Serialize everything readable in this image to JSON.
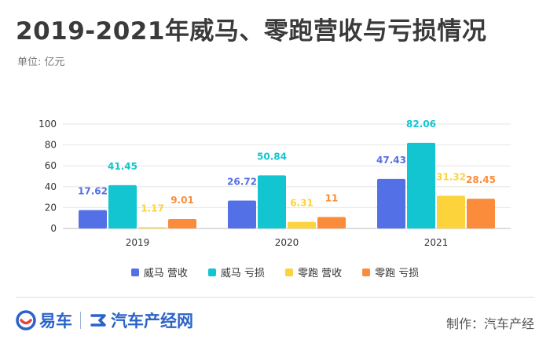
{
  "header": {
    "title": "2019-2021年威马、零跑营收与亏损情况",
    "unit": "单位: 亿元"
  },
  "chart_data": {
    "type": "bar",
    "categories": [
      "2019",
      "2020",
      "2021"
    ],
    "series": [
      {
        "name": "威马 营收",
        "values": [
          17.62,
          26.72,
          47.43
        ],
        "labels": [
          "17.62",
          "26.72",
          "47.43"
        ],
        "color": "#5470e6"
      },
      {
        "name": "威马 亏损",
        "values": [
          41.45,
          50.84,
          82.06
        ],
        "labels": [
          "41.45",
          "50.84",
          "82.06"
        ],
        "color": "#12c5d1"
      },
      {
        "name": "零跑 营收",
        "values": [
          1.17,
          6.31,
          31.32
        ],
        "labels": [
          "1.17",
          "6.31",
          "31.32"
        ],
        "color": "#fcd33a"
      },
      {
        "name": "零跑 亏损",
        "values": [
          9.01,
          11,
          28.45
        ],
        "labels": [
          "9.01",
          "11",
          "28.45"
        ],
        "color": "#fa8c3c"
      }
    ],
    "ylim": [
      0,
      100
    ],
    "yticks": [
      0,
      20,
      40,
      60,
      80,
      100
    ],
    "grid": true,
    "legend": "bottom"
  },
  "footer": {
    "logo1_text": "易车",
    "logo2_text": "汽车产经网",
    "producer": "制作：汽车产经"
  }
}
